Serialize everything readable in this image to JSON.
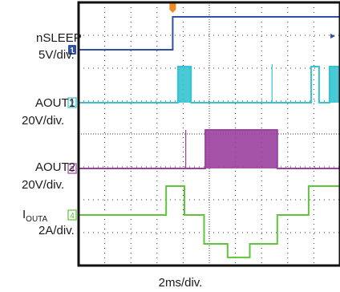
{
  "chart_data": {
    "type": "line",
    "time_per_div_ms": 2,
    "x_range_ms": [
      0,
      20
    ],
    "divisions": {
      "horizontal": 10,
      "vertical": 8
    },
    "trigger_time_ms": 7.2,
    "channels": [
      {
        "id": "1",
        "name": "nSLEEP",
        "scale": "5V/div.",
        "color": "#2f4fa8",
        "points": [
          [
            0,
            0
          ],
          [
            7.2,
            0
          ],
          [
            7.2,
            4.9
          ],
          [
            20,
            4.9
          ]
        ]
      },
      {
        "id": "2",
        "name": "AOUT1",
        "scale": "20V/div.",
        "color": "#35c2d2",
        "points": [
          [
            0,
            0
          ],
          [
            7.6,
            0
          ],
          [
            7.6,
            30
          ],
          [
            8.6,
            30
          ],
          [
            8.6,
            0
          ],
          [
            17.8,
            0
          ],
          [
            17.8,
            30
          ],
          [
            18.4,
            30
          ],
          [
            18.4,
            0
          ],
          [
            19.2,
            0
          ],
          [
            19.2,
            30
          ],
          [
            20,
            30
          ]
        ],
        "pwm_bursts_ms": [
          [
            7.6,
            8.6
          ],
          [
            19.2,
            20
          ]
        ],
        "spikes_ms": [
          14.8
        ]
      },
      {
        "id": "3",
        "name": "AOUT2",
        "scale": "20V/div.",
        "color": "#9b3fa0",
        "points": [
          [
            0,
            0
          ],
          [
            9.7,
            0
          ],
          [
            9.7,
            31
          ],
          [
            15.2,
            31
          ],
          [
            15.2,
            0
          ],
          [
            20,
            0
          ]
        ],
        "pwm_bursts_ms": [
          [
            9.7,
            15.2
          ]
        ],
        "spikes_ms": [
          8.2
        ]
      },
      {
        "id": "4",
        "name_main": "I",
        "name_sub": "OUTA",
        "scale": "2A/div.",
        "color": "#5fc43b",
        "points": [
          [
            0,
            0
          ],
          [
            6.7,
            0
          ],
          [
            6.7,
            1.7
          ],
          [
            8.1,
            1.7
          ],
          [
            8.1,
            0
          ],
          [
            9.6,
            0
          ],
          [
            9.6,
            -1.7
          ],
          [
            11.4,
            -1.7
          ],
          [
            11.4,
            -2.5
          ],
          [
            13.1,
            -2.5
          ],
          [
            13.1,
            -1.7
          ],
          [
            15.2,
            -1.7
          ],
          [
            15.2,
            0
          ],
          [
            17.6,
            0
          ],
          [
            17.6,
            1.7
          ],
          [
            20,
            1.7
          ]
        ]
      }
    ],
    "xlabel": "2ms/div."
  }
}
